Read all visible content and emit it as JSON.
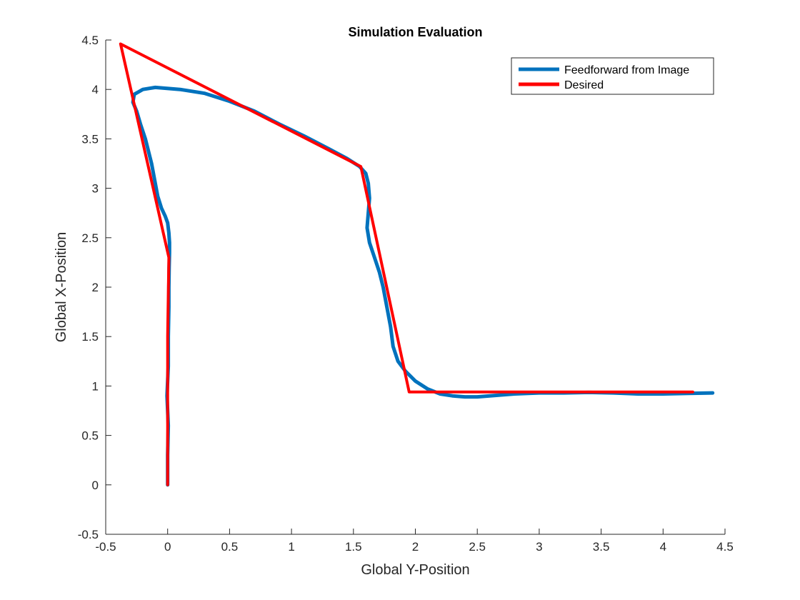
{
  "chart_data": {
    "type": "line",
    "title": "Simulation Evaluation",
    "xlabel": "Global Y-Position",
    "ylabel": "Global X-Position",
    "xlim": [
      -0.5,
      4.5
    ],
    "ylim": [
      -0.5,
      4.5
    ],
    "xticks": [
      "-0.5",
      "0",
      "0.5",
      "1",
      "1.5",
      "2",
      "2.5",
      "3",
      "3.5",
      "4",
      "4.5"
    ],
    "yticks": [
      "-0.5",
      "0",
      "0.5",
      "1",
      "1.5",
      "2",
      "2.5",
      "3",
      "3.5",
      "4",
      "4.5"
    ],
    "grid": false,
    "legend_position": "top-right",
    "series": [
      {
        "name": "Feedforward from Image",
        "color": "#0072BD",
        "x": [
          0.0,
          0.0,
          0.005,
          -0.005,
          0.005,
          0.005,
          0.01,
          0.01,
          0.012,
          0.015,
          0.015,
          0.01,
          0.0,
          -0.02,
          -0.05,
          -0.08,
          -0.1,
          -0.13,
          -0.18,
          -0.22,
          -0.25,
          -0.28,
          -0.27,
          -0.2,
          -0.1,
          0.1,
          0.3,
          0.5,
          0.7,
          0.9,
          1.1,
          1.3,
          1.45,
          1.55,
          1.6,
          1.62,
          1.63,
          1.62,
          1.61,
          1.63,
          1.67,
          1.71,
          1.74,
          1.77,
          1.8,
          1.82,
          1.86,
          1.92,
          2.0,
          2.1,
          2.2,
          2.3,
          2.4,
          2.5,
          2.6,
          2.8,
          3.0,
          3.2,
          3.4,
          3.6,
          3.8,
          4.0,
          4.2,
          4.4
        ],
        "y": [
          0.0,
          0.3,
          0.6,
          0.9,
          1.2,
          1.5,
          1.8,
          2.0,
          2.2,
          2.35,
          2.45,
          2.55,
          2.65,
          2.72,
          2.8,
          2.92,
          3.05,
          3.25,
          3.5,
          3.65,
          3.78,
          3.87,
          3.95,
          4.0,
          4.02,
          4.0,
          3.96,
          3.88,
          3.78,
          3.65,
          3.53,
          3.4,
          3.3,
          3.22,
          3.15,
          3.05,
          2.9,
          2.75,
          2.6,
          2.45,
          2.3,
          2.15,
          2.0,
          1.8,
          1.6,
          1.4,
          1.25,
          1.15,
          1.05,
          0.97,
          0.92,
          0.9,
          0.89,
          0.89,
          0.9,
          0.92,
          0.93,
          0.93,
          0.935,
          0.93,
          0.92,
          0.92,
          0.925,
          0.93
        ]
      },
      {
        "name": "Desired",
        "color": "#FF0000",
        "x": [
          0.0,
          0.0,
          0.01,
          -0.38,
          1.56,
          1.95,
          4.24
        ],
        "y": [
          0.0,
          1.5,
          2.3,
          4.46,
          3.22,
          0.94,
          0.94
        ]
      }
    ]
  }
}
